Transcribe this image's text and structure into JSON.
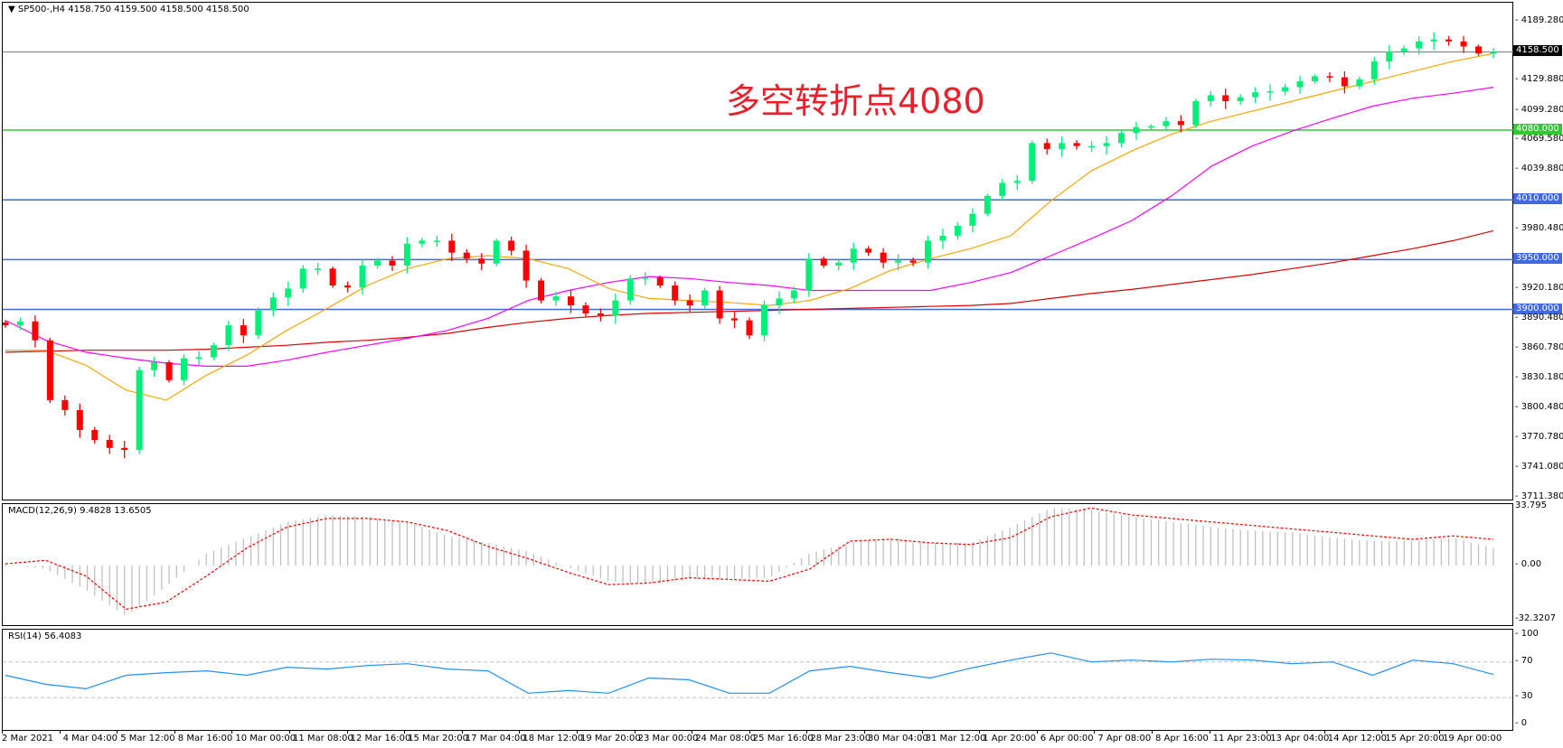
{
  "header": {
    "symbol": "SP500-,H4",
    "ohlc": "4158.750 4159.500 4158.500 4158.500"
  },
  "annotation": "多空转折点4080",
  "colors": {
    "bull": "#00f07a",
    "bear": "#ff0000",
    "ma_fast": "#ffa500",
    "ma_mid": "#ff00ff",
    "ma_slow": "#e00000",
    "support_line": "#4169e1",
    "pivot_line": "#32c832",
    "current_price": "#708090",
    "rsi": "#1e90ff",
    "macd_hist": "#c0c0c0",
    "macd_signal": "#ff0000"
  },
  "price_axis": {
    "ticks": [
      "4189.280",
      "4129.880",
      "4099.280",
      "4069.580",
      "4039.880",
      "3980.480",
      "3920.180",
      "3890.480",
      "3860.780",
      "3830.180",
      "3800.480",
      "3770.780",
      "3741.080",
      "3711.380"
    ],
    "current": "4158.500",
    "levels": [
      {
        "label": "4080.000",
        "value": 4080,
        "kind": "pivot"
      },
      {
        "label": "4010.000",
        "value": 4010,
        "kind": "support"
      },
      {
        "label": "3950.000",
        "value": 3950,
        "kind": "support"
      },
      {
        "label": "3900.000",
        "value": 3900,
        "kind": "support"
      }
    ]
  },
  "macd": {
    "title": "MACD(12,26,9) 9.4828 13.6505",
    "axis": [
      "33.795",
      "0.00",
      "-32.3207"
    ]
  },
  "rsi": {
    "title": "RSI(14) 56.4083",
    "axis": [
      "100",
      "70",
      "30",
      "0"
    ]
  },
  "time_axis": [
    "2 Mar 2021",
    "4 Mar 04:00",
    "5 Mar 12:00",
    "8 Mar 16:00",
    "10 Mar 00:00",
    "11 Mar 08:00",
    "12 Mar 16:00",
    "15 Mar 20:00",
    "17 Mar 04:00",
    "18 Mar 12:00",
    "19 Mar 20:00",
    "23 Mar 00:00",
    "24 Mar 08:00",
    "25 Mar 16:00",
    "28 Mar 23:00",
    "30 Mar 04:00",
    "31 Mar 12:00",
    "1 Apr 20:00",
    "6 Apr 00:00",
    "7 Apr 08:00",
    "8 Apr 16:00",
    "11 Apr 23:00",
    "13 Apr 04:00",
    "14 Apr 12:00",
    "15 Apr 20:00",
    "19 Apr 00:00"
  ],
  "chart_data": {
    "type": "candlestick",
    "price_range": [
      3711.38,
      4189.28
    ],
    "closes": [
      3884,
      3888,
      3869,
      3809,
      3799,
      3779,
      3769,
      3761,
      3759,
      3839,
      3847,
      3829,
      3851,
      3852,
      3864,
      3884,
      3874,
      3899,
      3912,
      3921,
      3941,
      3941,
      3924,
      3922,
      3944,
      3949,
      3944,
      3966,
      3969,
      3969,
      3957,
      3951,
      3946,
      3969,
      3959,
      3929,
      3909,
      3913,
      3904,
      3896,
      3894,
      3909,
      3931,
      3932,
      3924,
      3909,
      3904,
      3919,
      3891,
      3889,
      3874,
      3904,
      3911,
      3919,
      3951,
      3944,
      3947,
      3961,
      3957,
      3947,
      3949,
      3947,
      3969,
      3974,
      3984,
      3996,
      4014,
      4027,
      4029,
      4067,
      4061,
      4067,
      4064,
      4064,
      4067,
      4077,
      4083,
      4084,
      4089,
      4085,
      4109,
      4115,
      4109,
      4113,
      4118,
      4119,
      4123,
      4129,
      4134,
      4133,
      4124,
      4131,
      4149,
      4159,
      4162,
      4169,
      4171,
      4169,
      4164,
      4157,
      4158.5
    ],
    "ma_fast": [
      3859,
      3859,
      3844,
      3819,
      3809,
      3834,
      3854,
      3879,
      3901,
      3924,
      3941,
      3951,
      3954,
      3951,
      3941,
      3921,
      3911,
      3909,
      3907,
      3904,
      3909,
      3921,
      3939,
      3951,
      3961,
      3974,
      4009,
      4039,
      4059,
      4076,
      4089,
      4099,
      4109,
      4119,
      4129,
      4139,
      4149,
      4157
    ],
    "ma_mid": [
      3889,
      3869,
      3857,
      3851,
      3846,
      3843,
      3843,
      3849,
      3857,
      3864,
      3871,
      3879,
      3891,
      3909,
      3919,
      3927,
      3933,
      3931,
      3927,
      3924,
      3919,
      3919,
      3919,
      3919,
      3927,
      3937,
      3954,
      3971,
      3989,
      4014,
      4044,
      4064,
      4079,
      4092,
      4104,
      4112,
      4117,
      4123
    ],
    "ma_slow": [
      3857,
      3858,
      3859,
      3859,
      3859,
      3860,
      3862,
      3864,
      3867,
      3869,
      3872,
      3876,
      3882,
      3887,
      3891,
      3894,
      3896,
      3897,
      3898,
      3899,
      3900,
      3901,
      3902,
      3903,
      3904,
      3906,
      3911,
      3916,
      3920,
      3925,
      3930,
      3935,
      3941,
      3947,
      3954,
      3961,
      3969,
      3979
    ],
    "macd_hist": [
      1,
      -2,
      -14,
      -29,
      -12,
      7,
      16,
      25,
      29,
      28,
      25,
      17,
      13,
      8,
      -1,
      -9,
      -11,
      -8,
      -8,
      -7,
      7,
      13,
      16,
      13,
      13,
      22,
      33,
      32,
      28,
      25,
      22,
      20,
      19,
      16,
      14,
      14,
      16,
      10
    ],
    "macd_signal": [
      1,
      3,
      -6,
      -25,
      -21,
      -6,
      10,
      22,
      27,
      27,
      25,
      20,
      11,
      4,
      -4,
      -11,
      -10,
      -7,
      -8,
      -9,
      -2,
      14,
      15,
      13,
      12,
      16,
      28,
      33,
      29,
      27,
      25,
      23,
      21,
      19,
      17,
      15,
      17,
      15
    ],
    "macd_range": [
      -32.3207,
      33.795
    ],
    "rsi": [
      55,
      45,
      40,
      55,
      58,
      60,
      55,
      64,
      62,
      66,
      68,
      62,
      60,
      35,
      38,
      35,
      52,
      50,
      35,
      35,
      60,
      65,
      58,
      52,
      63,
      72,
      80,
      70,
      72,
      70,
      73,
      72,
      68,
      70,
      55,
      72,
      68,
      56
    ],
    "rsi_levels": [
      30,
      70
    ]
  }
}
